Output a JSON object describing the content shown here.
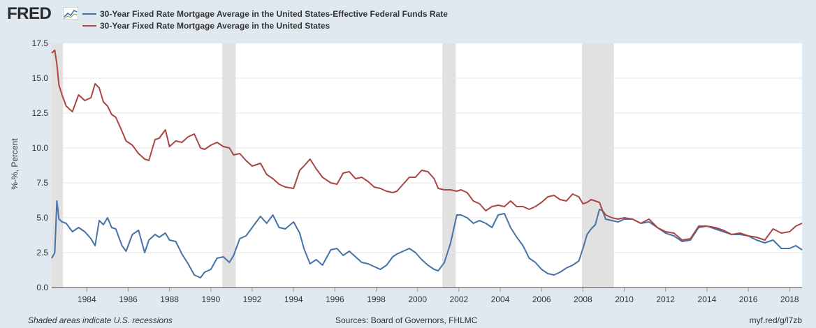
{
  "header": {
    "logo": "FRED",
    "logo_icon": "line-chart-icon"
  },
  "colors": {
    "background": "#e1e9f0",
    "plot_background": "#ffffff",
    "recession": "#e1e1e1",
    "series_blue": "#4572a7",
    "series_red": "#aa4643",
    "grid": "#e6e6e6"
  },
  "footer": {
    "left": "Shaded areas indicate U.S. recessions",
    "center": "Sources: Board of Governors, FHLMC",
    "right": "myf.red/g/l7zb"
  },
  "chart_data": {
    "type": "line",
    "ylabel": "%-%, Percent",
    "xlabel": "",
    "title": "",
    "ylim": [
      0,
      17.5
    ],
    "xlim": [
      1982.3,
      2018.6
    ],
    "grid": true,
    "legend_position": "top-left",
    "yticks": [
      "0.0",
      "2.5",
      "5.0",
      "7.5",
      "10.0",
      "12.5",
      "15.0",
      "17.5"
    ],
    "xticks": [
      "1984",
      "1986",
      "1988",
      "1990",
      "1992",
      "1994",
      "1996",
      "1998",
      "2000",
      "2002",
      "2004",
      "2006",
      "2008",
      "2010",
      "2012",
      "2014",
      "2016",
      "2018"
    ],
    "recessions": [
      [
        1982.3,
        1982.85
      ],
      [
        1990.55,
        1991.2
      ],
      [
        2001.2,
        2001.85
      ],
      [
        2007.95,
        2009.5
      ]
    ],
    "series": [
      {
        "name": "30-Year Fixed Rate Mortgage Average in the United States-Effective Federal Funds Rate",
        "color": "#4572a7",
        "x": [
          1982.3,
          1982.45,
          1982.55,
          1982.65,
          1982.8,
          1983.0,
          1983.3,
          1983.6,
          1983.9,
          1984.2,
          1984.4,
          1984.6,
          1984.8,
          1985.0,
          1985.2,
          1985.4,
          1985.7,
          1985.9,
          1986.2,
          1986.5,
          1986.8,
          1987.0,
          1987.3,
          1987.5,
          1987.8,
          1988.0,
          1988.3,
          1988.6,
          1988.9,
          1989.2,
          1989.5,
          1989.7,
          1990.0,
          1990.3,
          1990.6,
          1990.9,
          1991.1,
          1991.4,
          1991.7,
          1992.0,
          1992.4,
          1992.7,
          1993.0,
          1993.3,
          1993.6,
          1994.0,
          1994.3,
          1994.5,
          1994.8,
          1995.1,
          1995.4,
          1995.8,
          1996.1,
          1996.4,
          1996.7,
          1997.0,
          1997.3,
          1997.6,
          1997.9,
          1998.2,
          1998.5,
          1998.8,
          1999.0,
          1999.3,
          1999.6,
          1999.9,
          2000.2,
          2000.5,
          2000.8,
          2001.0,
          2001.3,
          2001.6,
          2001.9,
          2002.1,
          2002.4,
          2002.7,
          2003.0,
          2003.3,
          2003.6,
          2003.9,
          2004.2,
          2004.5,
          2004.8,
          2005.1,
          2005.4,
          2005.7,
          2006.0,
          2006.3,
          2006.6,
          2006.9,
          2007.2,
          2007.5,
          2007.8,
          2008.0,
          2008.2,
          2008.4,
          2008.6,
          2008.8,
          2008.95,
          2009.1,
          2009.4,
          2009.7,
          2010.0,
          2010.4,
          2010.8,
          2011.2,
          2011.6,
          2012.0,
          2012.4,
          2012.8,
          2013.2,
          2013.6,
          2014.0,
          2014.4,
          2014.8,
          2015.2,
          2015.6,
          2016.0,
          2016.4,
          2016.8,
          2017.2,
          2017.6,
          2018.0,
          2018.3,
          2018.6
        ],
        "values": [
          2.1,
          2.5,
          6.2,
          4.9,
          4.7,
          4.6,
          4.0,
          4.3,
          4.0,
          3.5,
          3.0,
          4.8,
          4.5,
          5.0,
          4.3,
          4.2,
          3.0,
          2.6,
          3.8,
          4.1,
          2.5,
          3.4,
          3.8,
          3.6,
          3.9,
          3.4,
          3.3,
          2.4,
          1.7,
          0.9,
          0.7,
          1.1,
          1.3,
          2.1,
          2.2,
          1.8,
          2.3,
          3.5,
          3.7,
          4.3,
          5.1,
          4.6,
          5.2,
          4.3,
          4.2,
          4.7,
          3.9,
          2.8,
          1.7,
          2.0,
          1.6,
          2.7,
          2.8,
          2.3,
          2.6,
          2.2,
          1.8,
          1.7,
          1.5,
          1.3,
          1.6,
          2.2,
          2.4,
          2.6,
          2.8,
          2.5,
          2.0,
          1.6,
          1.3,
          1.2,
          1.8,
          3.2,
          5.2,
          5.2,
          5.0,
          4.6,
          4.8,
          4.6,
          4.3,
          5.2,
          5.3,
          4.3,
          3.6,
          3.0,
          2.1,
          1.8,
          1.3,
          1.0,
          0.9,
          1.1,
          1.4,
          1.6,
          1.9,
          2.8,
          3.8,
          4.2,
          4.5,
          5.6,
          5.5,
          4.9,
          4.8,
          4.7,
          4.9,
          4.9,
          4.6,
          4.7,
          4.3,
          3.9,
          3.7,
          3.3,
          3.4,
          4.3,
          4.4,
          4.2,
          4.0,
          3.8,
          3.8,
          3.7,
          3.4,
          3.2,
          3.4,
          2.8,
          2.8,
          3.0,
          2.7
        ]
      },
      {
        "name": "30-Year Fixed Rate Mortgage Average in the United States",
        "color": "#aa4643",
        "x": [
          1982.3,
          1982.45,
          1982.55,
          1982.65,
          1982.8,
          1983.0,
          1983.3,
          1983.6,
          1983.9,
          1984.2,
          1984.4,
          1984.6,
          1984.8,
          1985.0,
          1985.2,
          1985.4,
          1985.7,
          1985.9,
          1986.2,
          1986.5,
          1986.8,
          1987.0,
          1987.3,
          1987.5,
          1987.8,
          1988.0,
          1988.3,
          1988.6,
          1988.9,
          1989.2,
          1989.5,
          1989.7,
          1990.0,
          1990.3,
          1990.6,
          1990.9,
          1991.1,
          1991.4,
          1991.7,
          1992.0,
          1992.4,
          1992.7,
          1993.0,
          1993.3,
          1993.6,
          1994.0,
          1994.3,
          1994.5,
          1994.8,
          1995.1,
          1995.4,
          1995.8,
          1996.1,
          1996.4,
          1996.7,
          1997.0,
          1997.3,
          1997.6,
          1997.9,
          1998.2,
          1998.5,
          1998.8,
          1999.0,
          1999.3,
          1999.6,
          1999.9,
          2000.2,
          2000.5,
          2000.8,
          2001.0,
          2001.3,
          2001.6,
          2001.9,
          2002.1,
          2002.4,
          2002.7,
          2003.0,
          2003.3,
          2003.6,
          2003.9,
          2004.2,
          2004.5,
          2004.8,
          2005.1,
          2005.4,
          2005.7,
          2006.0,
          2006.3,
          2006.6,
          2006.9,
          2007.2,
          2007.5,
          2007.8,
          2008.0,
          2008.2,
          2008.4,
          2008.6,
          2008.8,
          2008.95,
          2009.1,
          2009.4,
          2009.7,
          2010.0,
          2010.4,
          2010.8,
          2011.2,
          2011.6,
          2012.0,
          2012.4,
          2012.8,
          2013.2,
          2013.6,
          2014.0,
          2014.4,
          2014.8,
          2015.2,
          2015.6,
          2016.0,
          2016.4,
          2016.8,
          2017.2,
          2017.6,
          2018.0,
          2018.3,
          2018.6
        ],
        "values": [
          16.8,
          17.0,
          16.0,
          14.5,
          13.8,
          13.0,
          12.6,
          13.8,
          13.4,
          13.6,
          14.6,
          14.3,
          13.3,
          13.0,
          12.4,
          12.2,
          11.2,
          10.5,
          10.2,
          9.6,
          9.2,
          9.1,
          10.6,
          10.7,
          11.3,
          10.1,
          10.5,
          10.4,
          10.8,
          11.0,
          10.0,
          9.9,
          10.2,
          10.4,
          10.1,
          10.0,
          9.5,
          9.6,
          9.1,
          8.7,
          8.9,
          8.1,
          7.8,
          7.4,
          7.2,
          7.1,
          8.4,
          8.7,
          9.2,
          8.5,
          7.9,
          7.5,
          7.4,
          8.2,
          8.3,
          7.8,
          7.9,
          7.6,
          7.2,
          7.1,
          6.9,
          6.8,
          6.9,
          7.4,
          7.9,
          7.9,
          8.4,
          8.3,
          7.8,
          7.1,
          7.0,
          7.0,
          6.9,
          7.0,
          6.8,
          6.2,
          6.0,
          5.5,
          5.8,
          5.9,
          5.8,
          6.2,
          5.8,
          5.8,
          5.6,
          5.8,
          6.1,
          6.5,
          6.6,
          6.3,
          6.2,
          6.7,
          6.5,
          6.0,
          6.1,
          6.3,
          6.2,
          6.1,
          5.5,
          5.2,
          5.0,
          4.9,
          5.0,
          4.9,
          4.6,
          4.9,
          4.3,
          4.0,
          3.9,
          3.4,
          3.5,
          4.4,
          4.4,
          4.3,
          4.1,
          3.8,
          3.9,
          3.7,
          3.6,
          3.4,
          4.2,
          3.9,
          4.0,
          4.4,
          4.6
        ]
      }
    ]
  }
}
